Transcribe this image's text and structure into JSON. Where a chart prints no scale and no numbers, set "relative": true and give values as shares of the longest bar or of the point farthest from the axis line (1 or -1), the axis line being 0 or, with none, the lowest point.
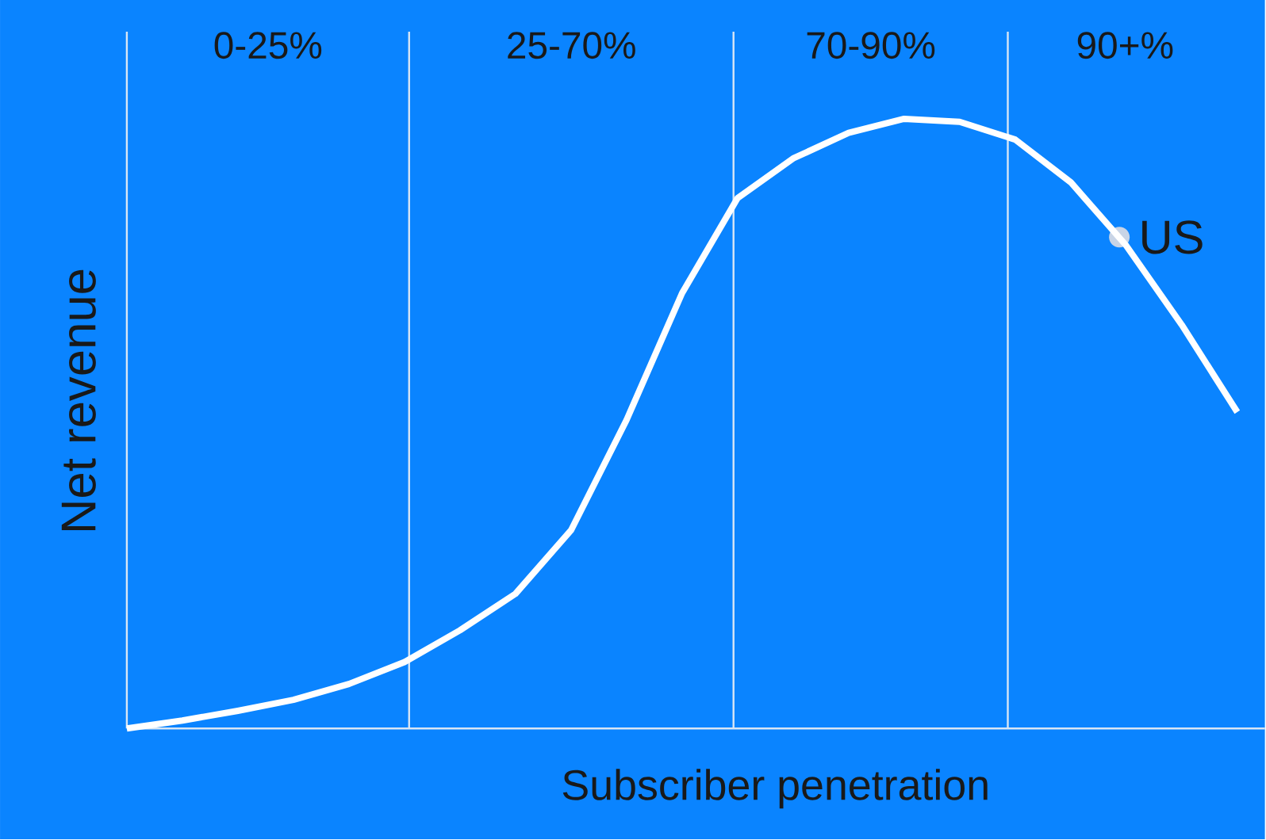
{
  "chart_data": {
    "type": "line",
    "relative": true,
    "xlabel": "Subscriber penetration",
    "ylabel": "Net revenue",
    "marker": "none",
    "line_style": "solid",
    "categories": [
      null,
      null,
      null,
      null,
      null,
      null,
      null,
      null,
      null,
      null,
      null,
      null,
      null,
      null,
      null,
      null,
      null,
      null,
      null,
      null,
      null
    ],
    "series": [
      {
        "color": "#ffffff",
        "values": [
          0,
          0.013,
          0.029,
          0.047,
          0.073,
          0.109,
          0.161,
          0.221,
          0.325,
          0.506,
          0.714,
          0.87,
          0.935,
          0.977,
          1.0,
          0.995,
          0.966,
          0.896,
          0.792,
          0.662,
          0.519
        ]
      }
    ],
    "annotations": [
      "0-25%",
      "25-70%",
      "70-90%",
      "90+%",
      "US"
    ]
  }
}
